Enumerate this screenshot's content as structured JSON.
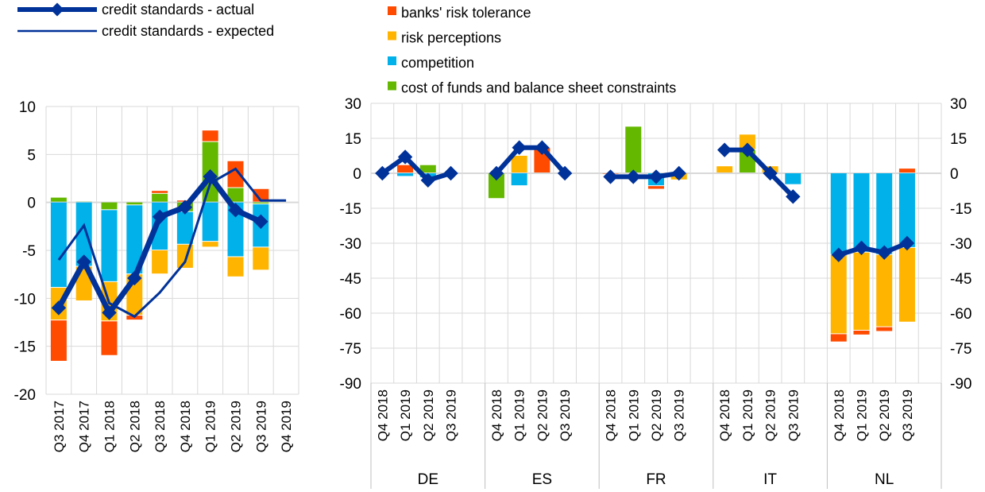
{
  "colors": {
    "risk_tolerance": "#ff4b00",
    "risk_perceptions": "#ffb400",
    "competition": "#00b1ea",
    "cost_of_funds": "#65b800",
    "line": "#003299",
    "grid": "#d9d9d9"
  },
  "legend_left": [
    "credit standards - actual",
    "credit standards - expected"
  ],
  "legend_right": [
    "banks' risk tolerance",
    "risk perceptions",
    "competition",
    "cost of funds and balance sheet constraints"
  ],
  "chart_data": [
    {
      "type": "bar",
      "title": "",
      "ylim": [
        -20,
        10
      ],
      "yticks": [
        "10",
        "5",
        "0",
        "-5",
        "-10",
        "-15",
        "-20"
      ],
      "categories": [
        "Q3 2017",
        "Q4 2017",
        "Q1 2018",
        "Q2 2018",
        "Q3 2018",
        "Q4 2018",
        "Q1 2019",
        "Q2 2019",
        "Q3 2019",
        "Q4 2019"
      ],
      "series": [
        {
          "name": "cost of funds and balance sheet constraints",
          "key": "cost_of_funds",
          "values": [
            0.5,
            0.1,
            -0.8,
            -0.3,
            0.9,
            -1.0,
            6.3,
            1.5,
            -0.2,
            null
          ]
        },
        {
          "name": "competition",
          "key": "competition",
          "values": [
            -8.9,
            -6.7,
            -7.5,
            -7.2,
            -5.0,
            -3.4,
            -4.1,
            -5.7,
            -4.5,
            null
          ]
        },
        {
          "name": "risk perceptions",
          "key": "risk_perceptions",
          "values": [
            -3.4,
            -3.6,
            -4.1,
            -4.3,
            -2.5,
            -2.5,
            -0.6,
            -2.1,
            -2.4,
            null
          ]
        },
        {
          "name": "banks' risk tolerance",
          "key": "risk_tolerance",
          "values": [
            -4.3,
            0,
            -3.6,
            -0.5,
            0.3,
            0.2,
            1.2,
            2.8,
            1.4,
            null
          ]
        }
      ],
      "lines": [
        {
          "name": "credit standards - actual",
          "values": [
            -11.0,
            -6.2,
            -11.5,
            -7.9,
            -1.5,
            -0.5,
            2.7,
            -0.8,
            -2.0,
            null
          ]
        },
        {
          "name": "credit standards - expected",
          "values": [
            -6.0,
            -2.4,
            -10.5,
            -11.9,
            -9.4,
            -6.2,
            2.0,
            3.5,
            0.2,
            0.2
          ]
        }
      ]
    },
    {
      "type": "bar",
      "title": "",
      "ylim": [
        -90,
        30
      ],
      "yticks": [
        "30",
        "15",
        "0",
        "-15",
        "-30",
        "-45",
        "-60",
        "-75",
        "-90"
      ],
      "groups": [
        "DE",
        "ES",
        "FR",
        "IT",
        "NL"
      ],
      "categories": [
        "Q4 2018",
        "Q1 2019",
        "Q2 2019",
        "Q3 2019"
      ],
      "data": {
        "DE": {
          "cost_of_funds": [
            0,
            0,
            3.5,
            0
          ],
          "competition": [
            0,
            -1.5,
            -2,
            0
          ],
          "risk_perceptions": [
            0,
            0,
            0,
            0
          ],
          "risk_tolerance": [
            0,
            3.5,
            0,
            0
          ],
          "actual": [
            0,
            7,
            -3,
            0
          ]
        },
        "ES": {
          "cost_of_funds": [
            -11,
            0,
            0,
            0
          ],
          "competition": [
            0,
            -5.5,
            0,
            0
          ],
          "risk_perceptions": [
            0,
            7.5,
            0,
            0
          ],
          "risk_tolerance": [
            0,
            0,
            11,
            0
          ],
          "actual": [
            0,
            11,
            11,
            0
          ]
        },
        "FR": {
          "cost_of_funds": [
            0,
            20,
            0,
            0
          ],
          "competition": [
            0,
            0,
            -5.5,
            0
          ],
          "risk_perceptions": [
            0,
            0,
            0,
            -3
          ],
          "risk_tolerance": [
            -0.5,
            0,
            -1.5,
            0
          ],
          "actual": [
            -1.5,
            -1.5,
            -1.5,
            0
          ]
        },
        "IT": {
          "cost_of_funds": [
            0,
            10,
            0,
            0
          ],
          "competition": [
            0,
            0,
            0,
            -5
          ],
          "risk_perceptions": [
            3,
            6.6,
            3,
            0
          ],
          "risk_tolerance": [
            0,
            0,
            0,
            0
          ],
          "actual": [
            10,
            10,
            0,
            -10
          ]
        },
        "NL": {
          "cost_of_funds": [
            0,
            0,
            0,
            0
          ],
          "competition": [
            -35,
            -34,
            -35,
            -32
          ],
          "risk_perceptions": [
            -34,
            -33.5,
            -31,
            -32
          ],
          "risk_tolerance": [
            -3.5,
            -2,
            -2,
            2
          ],
          "actual": [
            -35,
            -32,
            -34,
            -30
          ]
        }
      }
    }
  ]
}
